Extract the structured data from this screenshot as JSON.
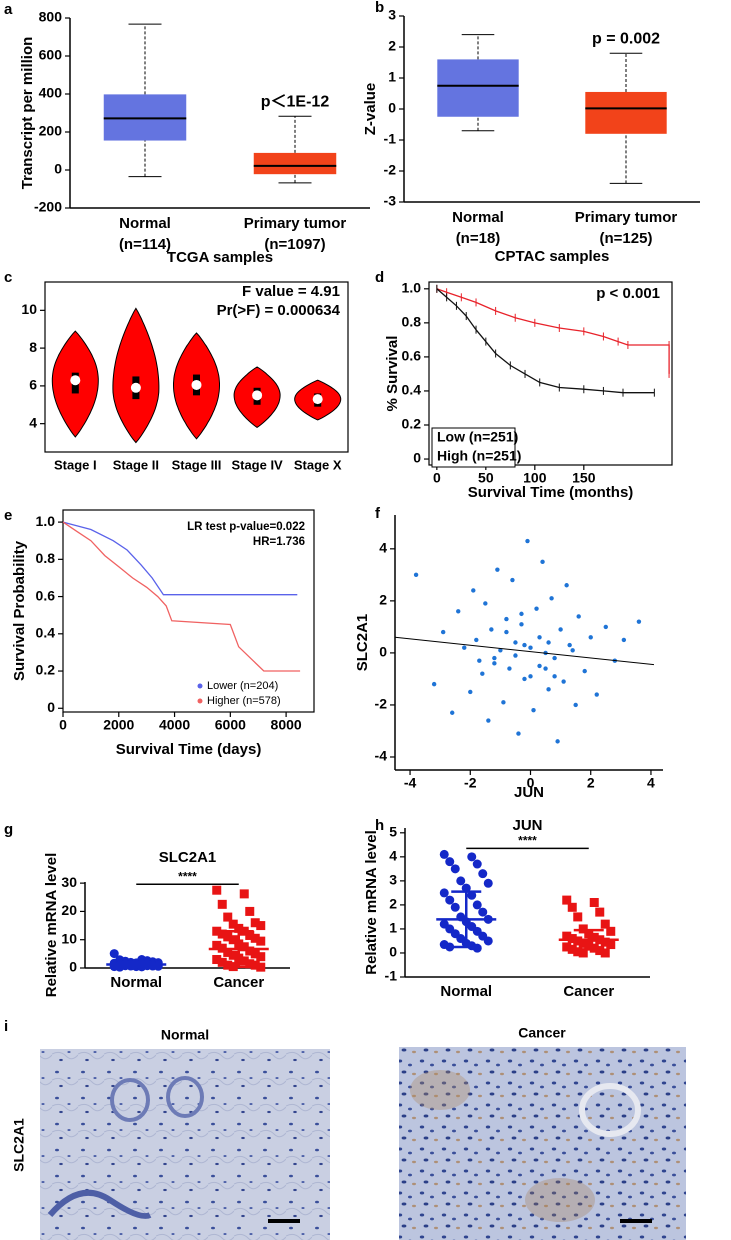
{
  "panel_letters": [
    "a",
    "b",
    "c",
    "d",
    "e",
    "f",
    "g",
    "h",
    "i"
  ],
  "chart_data": [
    {
      "type": "box",
      "frame": "axes",
      "ylabel": "Transcript per million",
      "xlabel": "TCGA samples",
      "categories": [
        "Normal",
        "Primary tumor"
      ],
      "category_counts": [
        "(n=114)",
        "(n=1097)"
      ],
      "boxes": [
        {
          "color": "#6474e0",
          "whisker_low": -35,
          "q1": 155,
          "median": 272,
          "q3": 398,
          "whisker_high": 768
        },
        {
          "color": "#f2431a",
          "whisker_low": -68,
          "q1": -22,
          "median": 22,
          "q3": 90,
          "whisker_high": 283
        }
      ],
      "annotation": "p＜1E-12",
      "ylim": [
        -200,
        800
      ],
      "yticks": [
        -200,
        0,
        200,
        400,
        600,
        800
      ]
    },
    {
      "type": "box",
      "frame": "axes",
      "ylabel": "Z-value",
      "xlabel": "CPTAC samples",
      "categories": [
        "Normal",
        "Primary tumor"
      ],
      "category_counts": [
        "(n=18)",
        "(n=125)"
      ],
      "boxes": [
        {
          "color": "#6474e0",
          "whisker_low": -0.7,
          "q1": -0.25,
          "median": 0.75,
          "q3": 1.6,
          "whisker_high": 2.4
        },
        {
          "color": "#f2431a",
          "whisker_low": -2.4,
          "q1": -0.8,
          "median": 0.02,
          "q3": 0.55,
          "whisker_high": 1.8
        }
      ],
      "annotation": "p = 0.002",
      "ylim": [
        -3,
        3
      ],
      "yticks": [
        -3,
        -2,
        -1,
        0,
        1,
        2,
        3
      ]
    },
    {
      "type": "violin",
      "frame": "box",
      "color": "#ff0000",
      "categories": [
        "Stage I",
        "Stage II",
        "Stage III",
        "Stage IV",
        "Stage X"
      ],
      "violins": [
        {
          "min": 3.3,
          "q1": 5.6,
          "median": 6.3,
          "q3": 6.7,
          "max": 8.9
        },
        {
          "min": 3.0,
          "q1": 5.3,
          "median": 5.9,
          "q3": 6.5,
          "max": 10.1
        },
        {
          "min": 3.2,
          "q1": 5.5,
          "median": 6.05,
          "q3": 6.6,
          "max": 8.8
        },
        {
          "min": 3.8,
          "q1": 5.0,
          "median": 5.5,
          "q3": 5.9,
          "max": 7.0
        },
        {
          "min": 4.2,
          "q1": 4.9,
          "median": 5.3,
          "q3": 5.6,
          "max": 6.3
        }
      ],
      "annotations": [
        "F value = 4.91",
        "Pr(>F) = 0.000634"
      ],
      "ylim": [
        2.5,
        11.5
      ],
      "yticks": [
        4,
        6,
        8,
        10
      ]
    },
    {
      "type": "survival",
      "frame": "box",
      "ylabel": "% Survival",
      "xlabel": "Survival Time (months)",
      "legend": "lower left",
      "legend_style": "box",
      "censor_marks": true,
      "series": [
        {
          "name": "Low (n=251)",
          "color": "#e8222a",
          "x": [
            0,
            10,
            25,
            40,
            60,
            80,
            100,
            125,
            150,
            170,
            185,
            195,
            237,
            237
          ],
          "values": [
            1,
            0.98,
            0.95,
            0.92,
            0.87,
            0.83,
            0.8,
            0.77,
            0.75,
            0.72,
            0.69,
            0.67,
            0.67,
            0.5
          ]
        },
        {
          "name": "High (n=251)",
          "color": "#111111",
          "x": [
            0,
            10,
            20,
            30,
            40,
            50,
            60,
            75,
            90,
            105,
            125,
            150,
            170,
            190,
            222
          ],
          "values": [
            1,
            0.95,
            0.9,
            0.84,
            0.76,
            0.69,
            0.62,
            0.55,
            0.5,
            0.45,
            0.42,
            0.41,
            0.4,
            0.39,
            0.39
          ]
        }
      ],
      "annotations": [
        "p < 0.001"
      ],
      "xlim": [
        -8,
        240
      ],
      "xticks": [
        0,
        50,
        100,
        150
      ],
      "ylim": [
        -0.035,
        1.04
      ],
      "yticks": [
        0,
        0.2,
        0.4,
        0.6,
        0.8,
        {
          "value": 1,
          "label": "1.0"
        }
      ]
    },
    {
      "type": "survival",
      "frame": "box",
      "ylabel": "Survival Probability",
      "xlabel": "Survival Time (days)",
      "legend": "lower right",
      "legend_style": "dot",
      "censor_marks": false,
      "series": [
        {
          "name": "Lower (n=204)",
          "color": "#5a62ea",
          "x": [
            0,
            1000,
            1800,
            2300,
            2800,
            3200,
            3600,
            8400
          ],
          "values": [
            1,
            0.96,
            0.9,
            0.85,
            0.77,
            0.7,
            0.61,
            0.61
          ]
        },
        {
          "name": "Higher (n=578)",
          "color": "#f06262",
          "x": [
            0,
            500,
            1000,
            1500,
            2000,
            2500,
            3000,
            3400,
            3700,
            3900,
            6000,
            6300,
            7200,
            8500
          ],
          "values": [
            1,
            0.95,
            0.9,
            0.82,
            0.76,
            0.7,
            0.65,
            0.6,
            0.55,
            0.47,
            0.45,
            0.33,
            0.2,
            0.2
          ]
        }
      ],
      "annotations": [
        "LR test p-value=0.022",
        "HR=1.736"
      ],
      "xlim": [
        0,
        9000
      ],
      "xticks": [
        0,
        2000,
        4000,
        6000,
        8000
      ],
      "ylim": [
        -0.02,
        1.065
      ],
      "yticks": [
        0,
        0.2,
        0.4,
        0.6,
        0.8,
        {
          "value": 1,
          "label": "1.0"
        }
      ]
    },
    {
      "type": "scatter",
      "frame": "axes",
      "ylabel": "SLC2A1",
      "xlabel": "JUN",
      "color": "#1f74d6",
      "x": [
        -3.8,
        -3.2,
        -2.9,
        -2.6,
        -2.4,
        -2.2,
        -2.0,
        -1.9,
        -1.8,
        -1.6,
        -1.5,
        -1.4,
        -1.3,
        -1.2,
        -1.1,
        -1.0,
        -0.9,
        -0.8,
        -0.7,
        -0.6,
        -0.5,
        -0.4,
        -0.3,
        -0.2,
        -0.1,
        0,
        0.1,
        0.2,
        0.3,
        0.4,
        0.5,
        0.6,
        0.7,
        0.8,
        0.9,
        1.0,
        1.1,
        1.2,
        1.3,
        1.5,
        1.6,
        1.8,
        2.0,
        2.2,
        2.5,
        2.8,
        3.1,
        3.6,
        -0.5,
        0.3,
        -1.2,
        0.8,
        -0.2,
        0.5,
        -0.8,
        1.4,
        -1.7,
        0.0,
        0.6,
        -0.3
      ],
      "values": [
        3.0,
        -1.2,
        0.8,
        -2.3,
        1.6,
        0.2,
        -1.5,
        2.4,
        0.5,
        -0.8,
        1.9,
        -2.6,
        0.9,
        -0.4,
        3.2,
        0.1,
        -1.9,
        1.3,
        -0.6,
        2.8,
        0.4,
        -3.1,
        1.1,
        -1.0,
        4.3,
        0.2,
        -2.2,
        1.7,
        -0.5,
        3.5,
        0.0,
        -1.4,
        2.1,
        -0.2,
        -3.4,
        0.9,
        -1.1,
        2.6,
        0.3,
        -2.0,
        1.4,
        -0.7,
        0.6,
        -1.6,
        1.0,
        -0.3,
        0.5,
        1.2,
        -0.1,
        0.6,
        -0.2,
        -0.9,
        0.3,
        -0.6,
        0.8,
        0.1,
        -0.3,
        -0.9,
        0.4,
        1.5
      ],
      "trend": {
        "x": [
          -4.5,
          4.1
        ],
        "values": [
          0.6,
          -0.45
        ]
      },
      "xlim": [
        -4.5,
        4.4
      ],
      "xticks": [
        -4,
        -2,
        0,
        2,
        4
      ],
      "ylim": [
        -4.5,
        5.3
      ],
      "yticks": [
        -4,
        -2,
        0,
        2,
        4
      ]
    },
    {
      "type": "dot",
      "frame": "axes",
      "title": "SLC2A1",
      "ylabel": "Relative mRNA level",
      "significance": "****",
      "series": [
        {
          "name": "Normal",
          "color": "#1428c8",
          "marker": "circle",
          "mean": 1.25,
          "sd": 0.75,
          "values": [
            5.1,
            3.0,
            2.9,
            2.6,
            2.4,
            2.2,
            2.0,
            1.9,
            1.8,
            1.7,
            1.6,
            1.5,
            1.4,
            1.3,
            1.3,
            1.2,
            1.1,
            1.0,
            1.0,
            0.9,
            0.9,
            0.8,
            0.8,
            0.7,
            0.7,
            0.6,
            0.5,
            0.5,
            0.4,
            0.3
          ]
        },
        {
          "name": "Cancer",
          "color": "#e81414",
          "marker": "square",
          "mean": 6.7,
          "sd": 6.3,
          "values": [
            27.5,
            26.2,
            22.5,
            20,
            18,
            16,
            15.5,
            15,
            14,
            13,
            13,
            12,
            11.5,
            11,
            10.5,
            10,
            9.5,
            8.5,
            8,
            7.5,
            7,
            6,
            5.5,
            5,
            4.5,
            4,
            3.5,
            3,
            2.5,
            2,
            1.5,
            1,
            1,
            0.5,
            0.3
          ]
        }
      ],
      "ylim": [
        0,
        30.4
      ],
      "yticks": [
        0,
        10,
        20,
        30
      ]
    },
    {
      "type": "dot",
      "frame": "axes",
      "title": "JUN",
      "ylabel": "Relative mRNA level",
      "significance": "****",
      "series": [
        {
          "name": "Normal",
          "color": "#1428c8",
          "marker": "circle",
          "mean": 1.4,
          "sd": 1.15,
          "values": [
            4.1,
            4.0,
            3.8,
            3.7,
            3.5,
            3.3,
            3.0,
            2.9,
            2.7,
            2.5,
            2.4,
            2.2,
            2.0,
            1.9,
            1.7,
            1.5,
            1.4,
            1.3,
            1.2,
            1.1,
            1.0,
            0.9,
            0.8,
            0.7,
            0.6,
            0.5,
            0.4,
            0.35,
            0.3,
            0.25,
            0.2
          ]
        },
        {
          "name": "Cancer",
          "color": "#e81414",
          "marker": "square",
          "mean": 0.55,
          "sd": 0.4,
          "values": [
            2.2,
            2.1,
            1.9,
            1.7,
            1.5,
            1.2,
            1.0,
            0.9,
            0.8,
            0.7,
            0.65,
            0.6,
            0.55,
            0.5,
            0.45,
            0.4,
            0.35,
            0.3,
            0.25,
            0.2,
            0.15,
            0.1,
            0.05,
            0.0,
            0.0
          ]
        }
      ],
      "ylim": [
        -1,
        5.2
      ],
      "yticks": [
        -1,
        0,
        1,
        2,
        3,
        4,
        5
      ]
    }
  ],
  "micrographs": {
    "row_label": "SLC2A1",
    "titles": [
      "Normal",
      "Cancer"
    ]
  }
}
